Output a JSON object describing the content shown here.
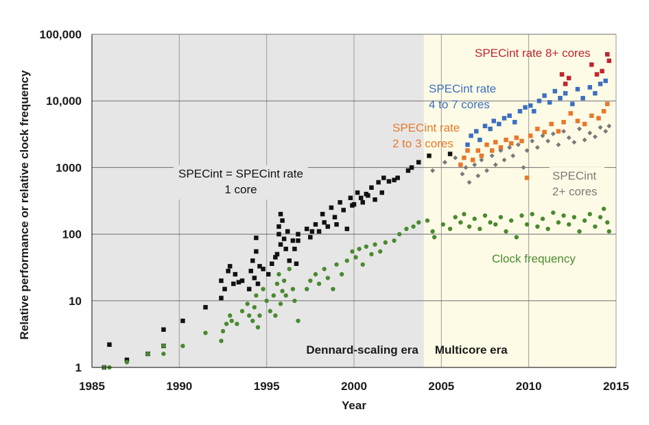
{
  "chart_data": {
    "type": "scatter",
    "xlabel": "Year",
    "ylabel": "Relative performance or relative clock frequency",
    "x_scale": "linear",
    "y_scale": "log",
    "xlim": [
      1985,
      2015
    ],
    "ylim": [
      1,
      100000
    ],
    "x_ticks": [
      "1985",
      "1990",
      "1995",
      "2000",
      "2005",
      "2010",
      "2015"
    ],
    "y_ticks": [
      "1",
      "10",
      "100",
      "1000",
      "10,000",
      "100,000"
    ],
    "grid": true,
    "eras": [
      {
        "label": "Dennard-scaling era",
        "start": 1985,
        "end": 2004,
        "color": "#e6e6e6"
      },
      {
        "label": "Multicore era",
        "start": 2004,
        "end": 2015,
        "color": "#fdfbe6"
      }
    ],
    "series": [
      {
        "name": "SPECint = SPECint rate 1 core",
        "label_lines": [
          "SPECint = SPECint rate",
          "1 core"
        ],
        "color": "#111111",
        "marker": "square",
        "points": [
          [
            1985.7,
            1
          ],
          [
            1986,
            2.2
          ],
          [
            1987,
            1.3
          ],
          [
            1988.2,
            1.6
          ],
          [
            1989.1,
            2.1
          ],
          [
            1989.1,
            3.7
          ],
          [
            1990.2,
            5
          ],
          [
            1991.5,
            8
          ],
          [
            1992.4,
            11
          ],
          [
            1992.4,
            20
          ],
          [
            1992.6,
            15
          ],
          [
            1992.8,
            28
          ],
          [
            1992.9,
            33
          ],
          [
            1993.1,
            18
          ],
          [
            1993.2,
            25
          ],
          [
            1993.4,
            19
          ],
          [
            1993.6,
            20
          ],
          [
            1994,
            15
          ],
          [
            1994.1,
            28
          ],
          [
            1994.2,
            40
          ],
          [
            1994.3,
            22
          ],
          [
            1994.4,
            55
          ],
          [
            1994.4,
            88
          ],
          [
            1994.5,
            18
          ],
          [
            1994.6,
            33
          ],
          [
            1994.8,
            30
          ],
          [
            1995.1,
            25
          ],
          [
            1995.3,
            36
          ],
          [
            1995.5,
            45
          ],
          [
            1995.6,
            50
          ],
          [
            1995.7,
            100
          ],
          [
            1995.7,
            130
          ],
          [
            1995.8,
            200
          ],
          [
            1995.8,
            70
          ],
          [
            1995.9,
            160
          ],
          [
            1996,
            85
          ],
          [
            1996.1,
            60
          ],
          [
            1996.2,
            110
          ],
          [
            1996.3,
            40
          ],
          [
            1996.5,
            80
          ],
          [
            1996.6,
            60
          ],
          [
            1996.7,
            36
          ],
          [
            1996.8,
            80
          ],
          [
            1996.8,
            100
          ],
          [
            1997.3,
            120
          ],
          [
            1997.5,
            90
          ],
          [
            1997.6,
            110
          ],
          [
            1997.8,
            140
          ],
          [
            1998,
            110
          ],
          [
            1998.2,
            200
          ],
          [
            1998.3,
            150
          ],
          [
            1998.5,
            130
          ],
          [
            1998.7,
            250
          ],
          [
            1998.9,
            180
          ],
          [
            1999,
            140
          ],
          [
            1999.2,
            300
          ],
          [
            1999.4,
            230
          ],
          [
            1999.6,
            120
          ],
          [
            1999.8,
            350
          ],
          [
            1999.9,
            270
          ],
          [
            2000,
            280
          ],
          [
            2000.2,
            420
          ],
          [
            2000.4,
            350
          ],
          [
            2000.5,
            300
          ],
          [
            2000.7,
            400
          ],
          [
            2000.8,
            380
          ],
          [
            2001,
            500
          ],
          [
            2001.2,
            330
          ],
          [
            2001.4,
            600
          ],
          [
            2001.6,
            420
          ],
          [
            2001.7,
            700
          ],
          [
            2002,
            620
          ],
          [
            2002.3,
            650
          ],
          [
            2002.5,
            700
          ],
          [
            2003.1,
            900
          ],
          [
            2003.3,
            1000
          ],
          [
            2003.7,
            1200
          ],
          [
            2004.3,
            1500
          ],
          [
            2005.5,
            1600
          ]
        ]
      },
      {
        "name": "SPECint rate 2 to 3 cores",
        "label_lines": [
          "SPECint rate",
          "2 to 3 cores"
        ],
        "color": "#e8782a",
        "marker": "square",
        "points": [
          [
            2006.1,
            1100
          ],
          [
            2006.3,
            1400
          ],
          [
            2006.5,
            1800
          ],
          [
            2006.8,
            1300
          ],
          [
            2007.1,
            1800
          ],
          [
            2007.3,
            1500
          ],
          [
            2007.6,
            2200
          ],
          [
            2007.9,
            1800
          ],
          [
            2008.1,
            2400
          ],
          [
            2008.4,
            2000
          ],
          [
            2008.7,
            2600
          ],
          [
            2009,
            2300
          ],
          [
            2009.3,
            2800
          ],
          [
            2009.6,
            2500
          ],
          [
            2009.9,
            700
          ],
          [
            2010.1,
            3000
          ],
          [
            2010.5,
            3800
          ],
          [
            2010.9,
            3400
          ],
          [
            2011.3,
            4500
          ],
          [
            2011.7,
            3500
          ],
          [
            2012,
            4800
          ],
          [
            2012.4,
            6500
          ],
          [
            2012.8,
            5000
          ],
          [
            2013.2,
            4500
          ],
          [
            2013.6,
            6000
          ],
          [
            2014,
            5500
          ],
          [
            2014.3,
            7000
          ],
          [
            2014.5,
            9000
          ]
        ]
      },
      {
        "name": "SPECint rate 4 to 7 cores",
        "label_lines": [
          "SPECint rate",
          "4 to 7 cores"
        ],
        "color": "#3c6fc0",
        "marker": "square",
        "points": [
          [
            2006.5,
            2200
          ],
          [
            2006.7,
            3000
          ],
          [
            2007,
            3500
          ],
          [
            2007.2,
            2600
          ],
          [
            2007.5,
            4200
          ],
          [
            2007.8,
            3800
          ],
          [
            2008,
            5000
          ],
          [
            2008.3,
            4500
          ],
          [
            2008.6,
            5500
          ],
          [
            2008.9,
            6000
          ],
          [
            2009.2,
            4800
          ],
          [
            2009.5,
            7000
          ],
          [
            2009.8,
            8000
          ],
          [
            2010.1,
            8500
          ],
          [
            2010.3,
            7000
          ],
          [
            2010.6,
            10000
          ],
          [
            2010.9,
            12000
          ],
          [
            2011.2,
            9500
          ],
          [
            2011.5,
            14000
          ],
          [
            2011.8,
            11000
          ],
          [
            2012.1,
            13000
          ],
          [
            2012.5,
            9000
          ],
          [
            2012.8,
            15000
          ],
          [
            2013.1,
            11000
          ],
          [
            2013.5,
            16000
          ],
          [
            2013.8,
            13000
          ],
          [
            2014.1,
            18000
          ],
          [
            2014.4,
            20000
          ]
        ]
      },
      {
        "name": "SPECint rate 8+ cores",
        "label_lines": [
          "SPECint rate 8+ cores"
        ],
        "color": "#c0262d",
        "marker": "square",
        "points": [
          [
            2011.9,
            25000
          ],
          [
            2012.1,
            18000
          ],
          [
            2012.3,
            22000
          ],
          [
            2013.6,
            35000
          ],
          [
            2013.9,
            25000
          ],
          [
            2014.2,
            28000
          ],
          [
            2014.5,
            50000
          ],
          [
            2014.6,
            40000
          ]
        ]
      },
      {
        "name": "SPECint 2+ cores",
        "label_lines": [
          "SPECint",
          "2+ cores"
        ],
        "color": "#7a7a7a",
        "marker": "diamond",
        "points": [
          [
            2004.5,
            900
          ],
          [
            2005.2,
            1200
          ],
          [
            2005.8,
            1400
          ],
          [
            2006.2,
            800
          ],
          [
            2006.4,
            1000
          ],
          [
            2006.6,
            600
          ],
          [
            2006.9,
            1100
          ],
          [
            2007.1,
            750
          ],
          [
            2007.3,
            1300
          ],
          [
            2007.6,
            900
          ],
          [
            2007.9,
            1500
          ],
          [
            2008.1,
            1100
          ],
          [
            2008.4,
            1800
          ],
          [
            2008.6,
            1300
          ],
          [
            2008.9,
            2000
          ],
          [
            2009.1,
            1500
          ],
          [
            2009.4,
            2200
          ],
          [
            2009.7,
            1000
          ],
          [
            2009.9,
            1800
          ],
          [
            2010.2,
            2500
          ],
          [
            2010.5,
            2000
          ],
          [
            2010.8,
            3000
          ],
          [
            2011.1,
            2500
          ],
          [
            2011.4,
            3200
          ],
          [
            2011.7,
            2200
          ],
          [
            2012,
            3500
          ],
          [
            2012.3,
            2800
          ],
          [
            2012.6,
            2400
          ],
          [
            2012.9,
            3800
          ],
          [
            2013.2,
            2600
          ],
          [
            2013.5,
            3300
          ],
          [
            2013.8,
            2900
          ],
          [
            2014.1,
            4000
          ],
          [
            2014.4,
            3500
          ],
          [
            2014.6,
            4200
          ]
        ]
      },
      {
        "name": "Clock frequency",
        "label_lines": [
          "Clock frequency"
        ],
        "color": "#4a8a2f",
        "marker": "circle",
        "points": [
          [
            1985.7,
            1
          ],
          [
            1986,
            1
          ],
          [
            1987,
            1.2
          ],
          [
            1988.2,
            1.6
          ],
          [
            1989.1,
            1.6
          ],
          [
            1989.1,
            2.1
          ],
          [
            1990.2,
            2.1
          ],
          [
            1991.5,
            3.3
          ],
          [
            1992.4,
            2.5
          ],
          [
            1992.5,
            3.5
          ],
          [
            1992.7,
            4.5
          ],
          [
            1992.9,
            6
          ],
          [
            1993,
            5
          ],
          [
            1993.3,
            4.5
          ],
          [
            1993.6,
            7
          ],
          [
            1993.9,
            9
          ],
          [
            1994,
            6
          ],
          [
            1994.2,
            5
          ],
          [
            1994.3,
            8
          ],
          [
            1994.4,
            12
          ],
          [
            1994.5,
            4
          ],
          [
            1994.6,
            6
          ],
          [
            1994.8,
            15
          ],
          [
            1995,
            10
          ],
          [
            1995.2,
            7
          ],
          [
            1995.4,
            12
          ],
          [
            1995.5,
            6
          ],
          [
            1995.6,
            18
          ],
          [
            1995.7,
            25
          ],
          [
            1995.8,
            9
          ],
          [
            1995.9,
            14
          ],
          [
            1996,
            20
          ],
          [
            1996.1,
            12
          ],
          [
            1996.3,
            30
          ],
          [
            1996.5,
            15
          ],
          [
            1996.6,
            10
          ],
          [
            1996.8,
            5
          ],
          [
            1997.3,
            15
          ],
          [
            1997.5,
            20
          ],
          [
            1997.8,
            25
          ],
          [
            1998,
            18
          ],
          [
            1998.3,
            30
          ],
          [
            1998.5,
            22
          ],
          [
            1998.8,
            15
          ],
          [
            1999,
            35
          ],
          [
            1999.3,
            25
          ],
          [
            1999.6,
            40
          ],
          [
            1999.9,
            55
          ],
          [
            2000.1,
            45
          ],
          [
            2000.3,
            60
          ],
          [
            2000.5,
            35
          ],
          [
            2000.7,
            65
          ],
          [
            2001,
            50
          ],
          [
            2001.2,
            70
          ],
          [
            2001.5,
            55
          ],
          [
            2001.8,
            75
          ],
          [
            2002.3,
            80
          ],
          [
            2002.6,
            100
          ],
          [
            2003,
            120
          ],
          [
            2003.4,
            130
          ],
          [
            2003.7,
            150
          ],
          [
            2004.2,
            160
          ],
          [
            2004.5,
            110
          ],
          [
            2004.6,
            90
          ],
          [
            2005.1,
            140
          ],
          [
            2005.5,
            120
          ],
          [
            2005.8,
            180
          ],
          [
            2006.1,
            150
          ],
          [
            2006.3,
            200
          ],
          [
            2006.6,
            130
          ],
          [
            2006.9,
            170
          ],
          [
            2007.2,
            120
          ],
          [
            2007.5,
            190
          ],
          [
            2007.8,
            150
          ],
          [
            2008.1,
            140
          ],
          [
            2008.4,
            180
          ],
          [
            2008.7,
            110
          ],
          [
            2009,
            160
          ],
          [
            2009.3,
            90
          ],
          [
            2009.6,
            190
          ],
          [
            2009.9,
            140
          ],
          [
            2010.2,
            200
          ],
          [
            2010.5,
            130
          ],
          [
            2010.8,
            170
          ],
          [
            2011.1,
            120
          ],
          [
            2011.4,
            210
          ],
          [
            2011.7,
            150
          ],
          [
            2012,
            190
          ],
          [
            2012.3,
            140
          ],
          [
            2012.6,
            180
          ],
          [
            2012.9,
            110
          ],
          [
            2013.2,
            160
          ],
          [
            2013.5,
            200
          ],
          [
            2013.8,
            130
          ],
          [
            2014.1,
            180
          ],
          [
            2014.3,
            240
          ],
          [
            2014.5,
            150
          ],
          [
            2014.6,
            110
          ]
        ]
      }
    ]
  }
}
